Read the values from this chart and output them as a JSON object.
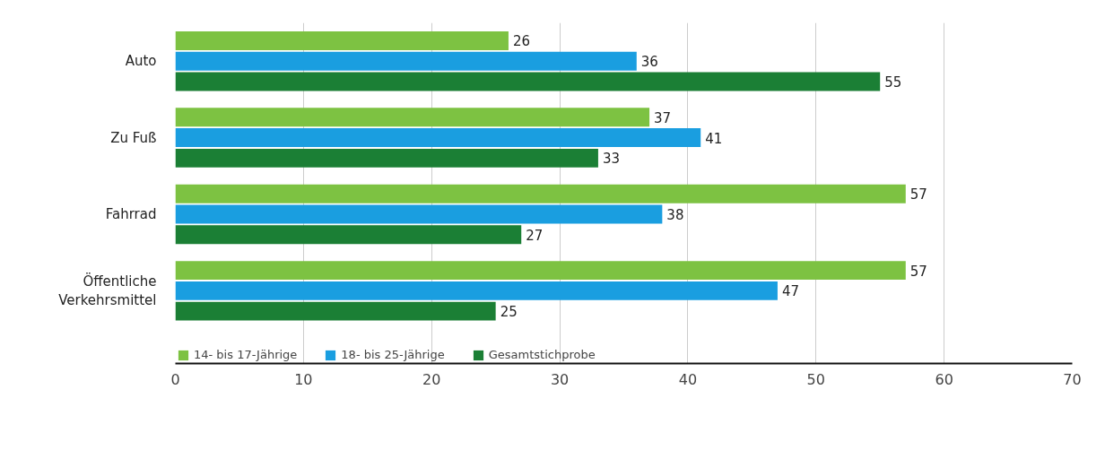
{
  "chart_data": {
    "type": "bar",
    "orientation": "horizontal",
    "categories": [
      "Auto",
      "Zu Fuß",
      "Fahrrad",
      "Öffentliche Verkehrsmittel"
    ],
    "series": [
      {
        "name": "14- bis 17-Jährige",
        "color": "#7dc242",
        "values": [
          26,
          37,
          57,
          57
        ]
      },
      {
        "name": "18- bis 25-Jährige",
        "color": "#1a9ee0",
        "values": [
          36,
          41,
          38,
          47
        ]
      },
      {
        "name": "Gesamtstichprobe",
        "color": "#1b7f35",
        "values": [
          55,
          33,
          27,
          25
        ]
      }
    ],
    "xlim": [
      0,
      70
    ],
    "xticks": [
      0,
      10,
      20,
      30,
      40,
      50,
      60,
      70
    ],
    "grid": "x",
    "legend": "bottom left",
    "data_labels": true
  }
}
